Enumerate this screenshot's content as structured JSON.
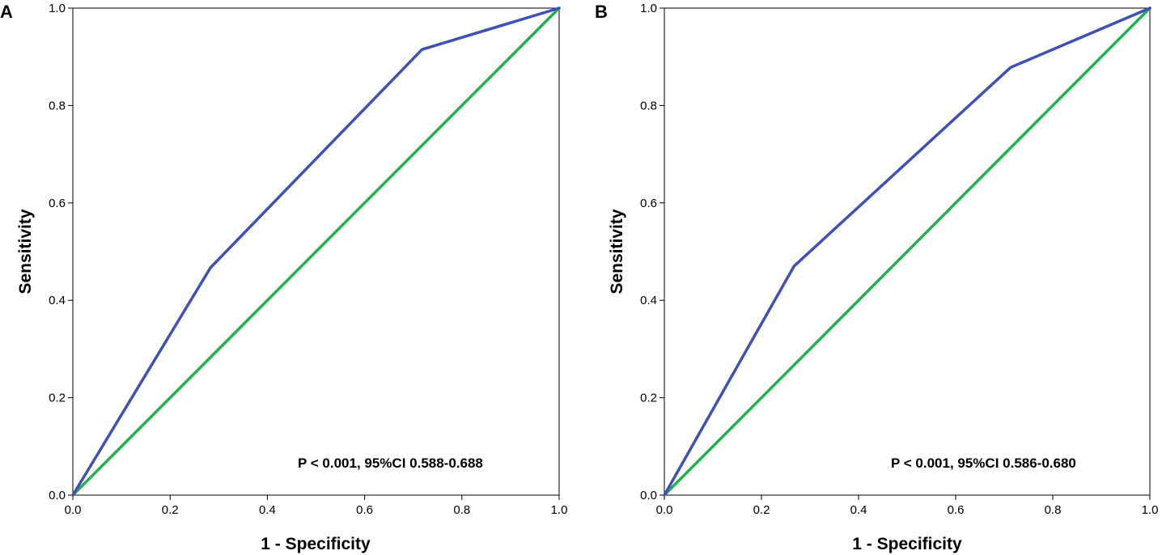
{
  "chart_data": [
    {
      "type": "line",
      "panel_label": "A",
      "xlabel": "1 - Specificity",
      "ylabel": "Sensitivity",
      "xlim": [
        0,
        1
      ],
      "ylim": [
        0,
        1
      ],
      "x_ticks": [
        "0.0",
        "0.2",
        "0.4",
        "0.6",
        "0.8",
        "1.0"
      ],
      "y_ticks": [
        "0.0",
        "0.2",
        "0.4",
        "0.6",
        "0.8",
        "1.0"
      ],
      "annotation": "P < 0.001, 95%CI 0.588-0.688",
      "series": [
        {
          "name": "ROC curve",
          "color": "#3f51b5",
          "x": [
            0,
            0.283,
            0.718,
            1
          ],
          "y": [
            0,
            0.467,
            0.915,
            1
          ]
        },
        {
          "name": "Reference line",
          "color": "#22b14c",
          "x": [
            0,
            1
          ],
          "y": [
            0,
            1
          ]
        }
      ]
    },
    {
      "type": "line",
      "panel_label": "B",
      "xlabel": "1 - Specificity",
      "ylabel": "Sensitivity",
      "xlim": [
        0,
        1
      ],
      "ylim": [
        0,
        1
      ],
      "x_ticks": [
        "0.0",
        "0.2",
        "0.4",
        "0.6",
        "0.8",
        "1.0"
      ],
      "y_ticks": [
        "0.0",
        "0.2",
        "0.4",
        "0.6",
        "0.8",
        "1.0"
      ],
      "annotation": "P < 0.001, 95%CI 0.586-0.680",
      "series": [
        {
          "name": "ROC curve",
          "color": "#3f51b5",
          "x": [
            0,
            0.267,
            0.713,
            1
          ],
          "y": [
            0,
            0.47,
            0.878,
            1
          ]
        },
        {
          "name": "Reference line",
          "color": "#22b14c",
          "x": [
            0,
            1
          ],
          "y": [
            0,
            1
          ]
        }
      ]
    }
  ]
}
